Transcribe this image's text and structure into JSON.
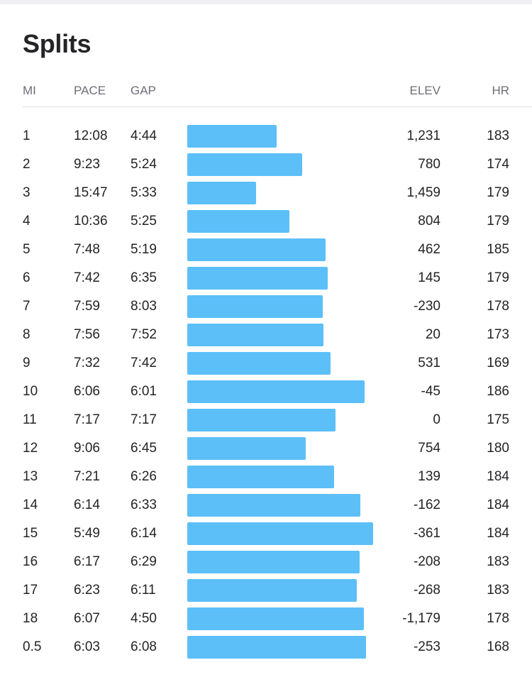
{
  "title": "Splits",
  "colors": {
    "bar": "#5cbff8",
    "header_text": "#6d6d78",
    "text": "#242428",
    "divider": "#dfdfe8"
  },
  "headers": {
    "mi": "MI",
    "pace": "PACE",
    "gap": "GAP",
    "elev": "ELEV",
    "hr": "HR"
  },
  "splits": [
    {
      "mi": "1",
      "pace": "12:08",
      "gap": "4:44",
      "elev": "1,231",
      "hr": "183"
    },
    {
      "mi": "2",
      "pace": "9:23",
      "gap": "5:24",
      "elev": "780",
      "hr": "174"
    },
    {
      "mi": "3",
      "pace": "15:47",
      "gap": "5:33",
      "elev": "1,459",
      "hr": "179"
    },
    {
      "mi": "4",
      "pace": "10:36",
      "gap": "5:25",
      "elev": "804",
      "hr": "179"
    },
    {
      "mi": "5",
      "pace": "7:48",
      "gap": "5:19",
      "elev": "462",
      "hr": "185"
    },
    {
      "mi": "6",
      "pace": "7:42",
      "gap": "6:35",
      "elev": "145",
      "hr": "179"
    },
    {
      "mi": "7",
      "pace": "7:59",
      "gap": "8:03",
      "elev": "-230",
      "hr": "178"
    },
    {
      "mi": "8",
      "pace": "7:56",
      "gap": "7:52",
      "elev": "20",
      "hr": "173"
    },
    {
      "mi": "9",
      "pace": "7:32",
      "gap": "7:42",
      "elev": "531",
      "hr": "169"
    },
    {
      "mi": "10",
      "pace": "6:06",
      "gap": "6:01",
      "elev": "-45",
      "hr": "186"
    },
    {
      "mi": "11",
      "pace": "7:17",
      "gap": "7:17",
      "elev": "0",
      "hr": "175"
    },
    {
      "mi": "12",
      "pace": "9:06",
      "gap": "6:45",
      "elev": "754",
      "hr": "180"
    },
    {
      "mi": "13",
      "pace": "7:21",
      "gap": "6:26",
      "elev": "139",
      "hr": "184"
    },
    {
      "mi": "14",
      "pace": "6:14",
      "gap": "6:33",
      "elev": "-162",
      "hr": "184"
    },
    {
      "mi": "15",
      "pace": "5:49",
      "gap": "6:14",
      "elev": "-361",
      "hr": "184"
    },
    {
      "mi": "16",
      "pace": "6:17",
      "gap": "6:29",
      "elev": "-208",
      "hr": "183"
    },
    {
      "mi": "17",
      "pace": "6:23",
      "gap": "6:11",
      "elev": "-268",
      "hr": "183"
    },
    {
      "mi": "18",
      "pace": "6:07",
      "gap": "4:50",
      "elev": "-1,179",
      "hr": "178"
    },
    {
      "mi": "0.5",
      "pace": "6:03",
      "gap": "6:08",
      "elev": "-253",
      "hr": "168"
    }
  ]
}
